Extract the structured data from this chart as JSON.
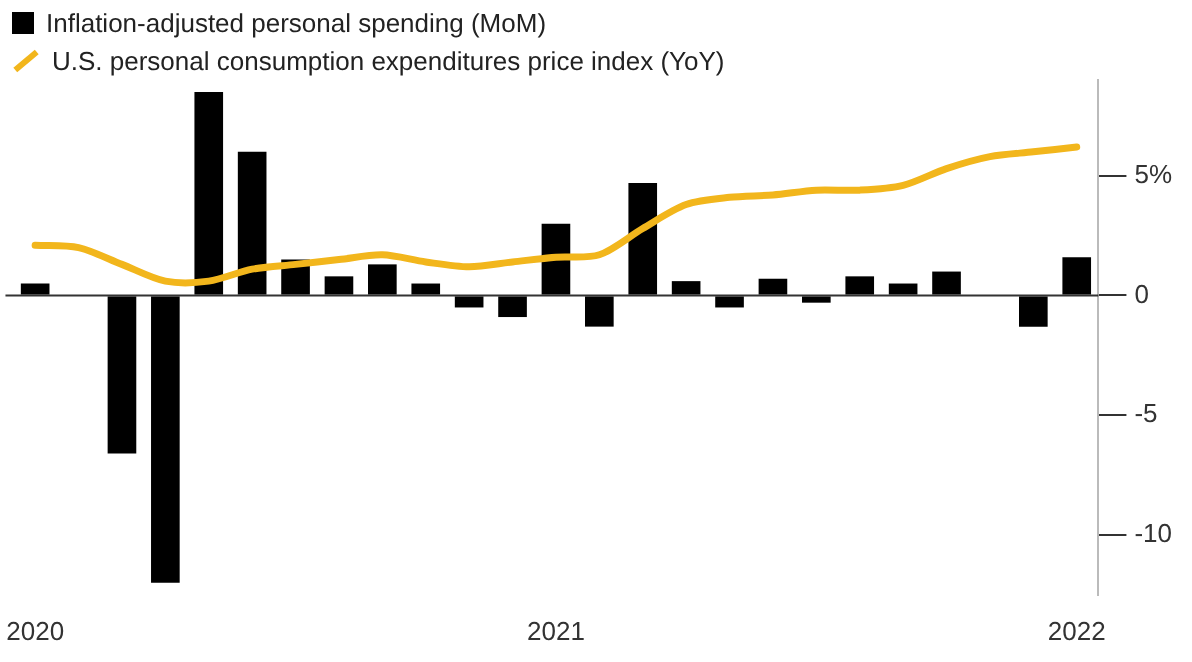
{
  "chart_data": {
    "type": "bar",
    "categories": [
      "2020",
      null,
      null,
      null,
      null,
      null,
      null,
      null,
      null,
      null,
      null,
      null,
      "2021",
      null,
      null,
      null,
      null,
      null,
      null,
      null,
      null,
      null,
      null,
      null,
      "2022"
    ],
    "series": [
      {
        "name": "Inflation-adjusted personal spending (MoM)",
        "color": "#000000",
        "values": [
          0.5,
          0,
          -6.6,
          -12.0,
          8.5,
          6.0,
          1.5,
          0.8,
          1.3,
          0.5,
          -0.5,
          -0.9,
          3.0,
          -1.3,
          4.7,
          0.6,
          -0.5,
          0.7,
          -0.3,
          0.8,
          0.5,
          1.0,
          0,
          -1.3,
          1.6
        ]
      },
      {
        "name": "U.S. personal consumption expenditures price index (YoY)",
        "type": "line",
        "color": "#f2b61c",
        "values": [
          2.1,
          2.0,
          1.3,
          0.6,
          0.6,
          1.1,
          1.3,
          1.5,
          1.7,
          1.4,
          1.2,
          1.4,
          1.6,
          1.7,
          2.8,
          3.8,
          4.1,
          4.2,
          4.4,
          4.4,
          4.6,
          5.3,
          5.8,
          6.0,
          6.2
        ]
      }
    ],
    "yticks": [
      {
        "value": 5,
        "label": "5%"
      },
      0,
      -5,
      -10
    ],
    "ylim": [
      -12.5,
      9
    ],
    "grid": "y",
    "legend": "top left"
  }
}
